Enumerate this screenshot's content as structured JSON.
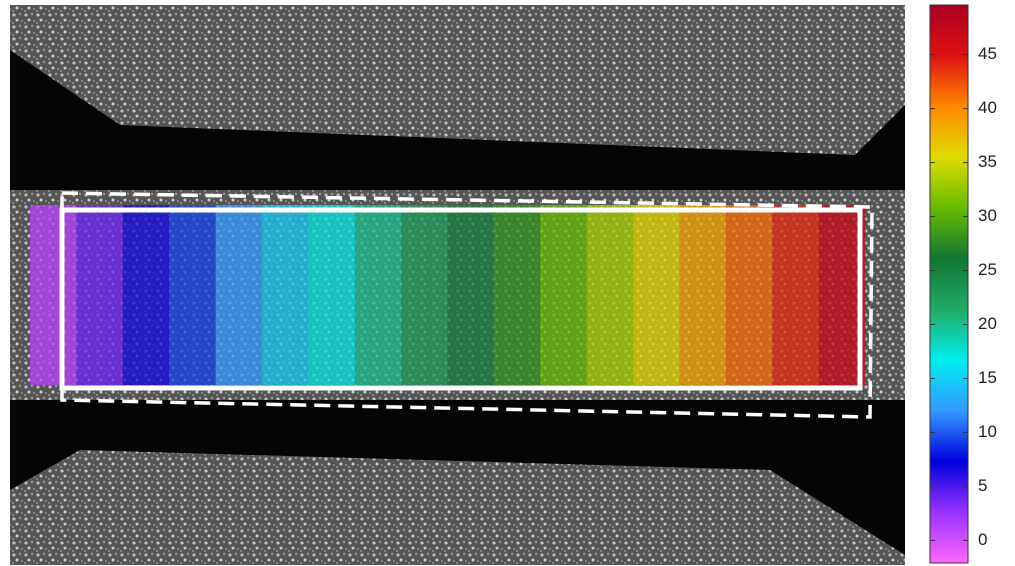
{
  "chart_data": {
    "type": "heatmap",
    "values": [
      1.3,
      4,
      6.7,
      9.3,
      12,
      14.7,
      17.3,
      20,
      22.7,
      25.3,
      28,
      30.7,
      33.3,
      36,
      38.7,
      41.3,
      44,
      46.7
    ],
    "colormap": [
      "#ff66ff",
      "#9933ff",
      "#0000dd",
      "#3399ff",
      "#00eeee",
      "#22aa66",
      "#117733",
      "#66bb00",
      "#dddd00",
      "#ff8800",
      "#dd1111",
      "#aa0022"
    ],
    "clim": [
      -2.1,
      49.6
    ],
    "cticks": [
      0,
      5,
      10,
      15,
      20,
      25,
      30,
      35,
      40,
      45
    ]
  }
}
